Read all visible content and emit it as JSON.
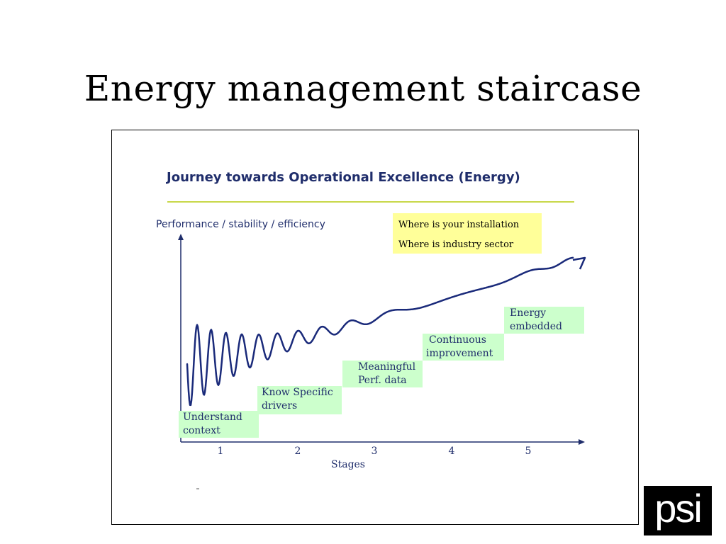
{
  "slide": {
    "title": "Energy management staircase"
  },
  "diagram": {
    "title": "Journey towards Operational Excellence (Energy)",
    "y_axis_label": "Performance / stability / efficiency",
    "x_axis_label": "Stages",
    "x_ticks": [
      "1",
      "2",
      "3",
      "4",
      "5"
    ],
    "legend_box": {
      "line1": "Where is your installation",
      "line2": "Where is industry sector"
    },
    "steps": [
      {
        "stage": 1,
        "line1": "Understand",
        "line2": "context"
      },
      {
        "stage": 2,
        "line1": "Know Specific",
        "line2": "drivers"
      },
      {
        "stage": 3,
        "line1": "Meaningful",
        "line2": "Perf. data"
      },
      {
        "stage": 4,
        "line1": "Continuous",
        "line2": "improvement"
      },
      {
        "stage": 5,
        "line1": "Energy",
        "line2": "embedded"
      }
    ],
    "colors": {
      "text": "#1f2d6b",
      "curve": "#1a2a7a",
      "step_fill": "#ccffcc",
      "legend_fill": "#ffff99",
      "title_rule": "#c8d84a"
    }
  },
  "logo": {
    "text": "psi"
  }
}
